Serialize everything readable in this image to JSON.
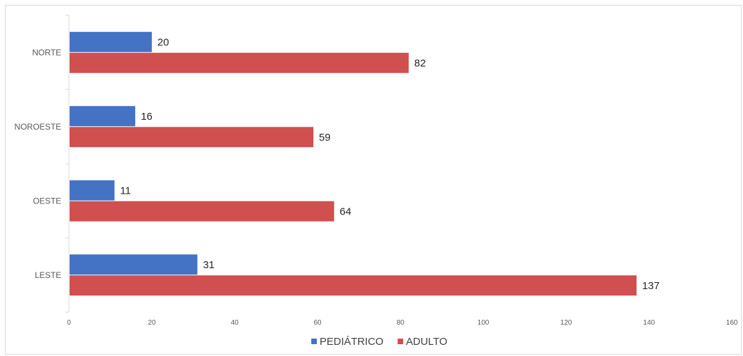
{
  "chart_data": {
    "type": "bar",
    "orientation": "horizontal",
    "title": "",
    "xlabel": "",
    "ylabel": "",
    "categories": [
      "NORTE",
      "NOROESTE",
      "OESTE",
      "LESTE"
    ],
    "series": [
      {
        "name": "PEDIÁTRICO",
        "color": "#4472C4",
        "values": [
          20,
          16,
          11,
          31
        ]
      },
      {
        "name": "ADULTO",
        "color": "#D04F4F",
        "values": [
          82,
          59,
          64,
          137
        ]
      }
    ],
    "xlim": [
      0,
      160
    ],
    "xticks": [
      "0",
      "20",
      "40",
      "60",
      "80",
      "100",
      "120",
      "140",
      "160"
    ],
    "grid": false,
    "legend_position": "bottom",
    "data_labels": true
  }
}
